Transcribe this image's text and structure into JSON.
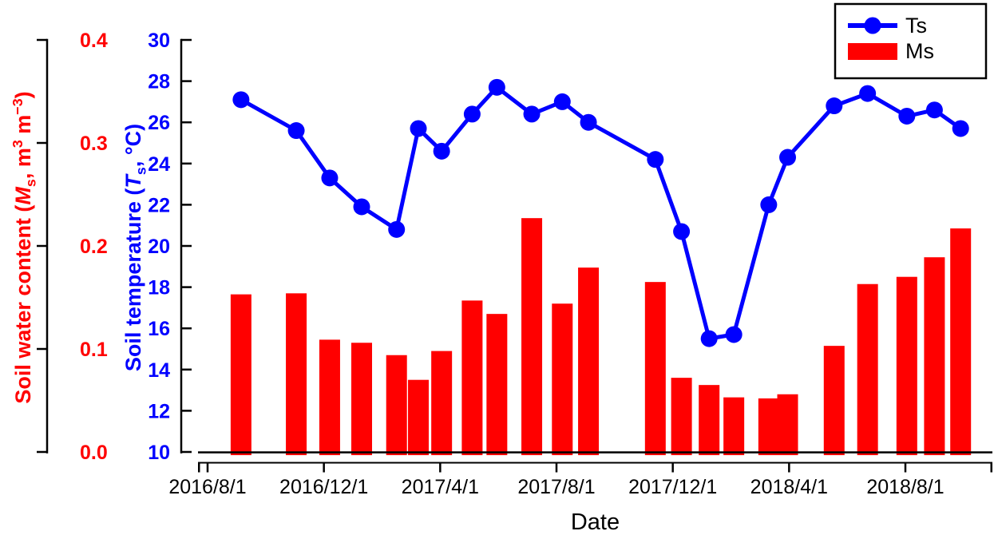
{
  "figure": {
    "water_axis_title_parts": [
      {
        "t": "Soil water content ("
      },
      {
        "t": "M",
        "i": 1
      },
      {
        "t": "s",
        "sub": 1
      },
      {
        "t": ", m"
      },
      {
        "t": "3",
        "sup": 1
      },
      {
        "t": " m"
      },
      {
        "t": "−3",
        "sup": 1
      },
      {
        "t": ")"
      }
    ],
    "temp_axis_title_parts": [
      {
        "t": "Soil temperature ("
      },
      {
        "t": "T",
        "i": 1
      },
      {
        "t": "s",
        "sub": 1
      },
      {
        "t": ", °C)"
      }
    ]
  },
  "chart_data": {
    "type": "dual-axis line+bar",
    "title": "",
    "background": "#ffffff",
    "grid": false,
    "x_axis": {
      "label": "Date",
      "origin_date": "2016/8/1",
      "tick_labels": [
        "2016/8/1",
        "2016/12/1",
        "2017/4/1",
        "2017/8/1",
        "2017/12/1",
        "2018/4/1",
        "2018/8/1"
      ],
      "tick_month_offsets": [
        0,
        4,
        8,
        12,
        16,
        20,
        24
      ],
      "months_span": [
        0,
        27
      ]
    },
    "water_axis": {
      "title": "Soil water content (Ms, m3 m-3)",
      "side": "outer-left",
      "color": "#ff0000",
      "tick_labels": [
        "0.0",
        "0.1",
        "0.2",
        "0.3",
        "0.4"
      ],
      "tick_values": [
        0.0,
        0.1,
        0.2,
        0.3,
        0.4
      ],
      "range": [
        0.0,
        0.4
      ]
    },
    "temperature_axis": {
      "title": "Soil temperature (Ts, °C)",
      "side": "inner-left",
      "color": "#0000ff",
      "tick_labels": [
        "10",
        "12",
        "14",
        "16",
        "18",
        "20",
        "22",
        "24",
        "26",
        "28",
        "30"
      ],
      "tick_values": [
        10,
        12,
        14,
        16,
        18,
        20,
        22,
        24,
        26,
        28,
        30
      ],
      "range": [
        10,
        30
      ]
    },
    "legend": {
      "position": "top-right",
      "entries": [
        {
          "label": "Ts",
          "marker": "line-circle",
          "color": "#0000ff"
        },
        {
          "label": "Ms",
          "marker": "filled-bar",
          "color": "#ff0000"
        }
      ]
    },
    "series": [
      {
        "name": "Ts",
        "type": "line",
        "axis": "temperature",
        "color": "#0000ff",
        "points": [
          {
            "date": "2016/9",
            "x_months": 1.15,
            "y": 27.1
          },
          {
            "date": "2016/11",
            "x_months": 3.05,
            "y": 25.6
          },
          {
            "date": "2016/12",
            "x_months": 4.2,
            "y": 23.3
          },
          {
            "date": "2017/1",
            "x_months": 5.3,
            "y": 21.9
          },
          {
            "date": "2017/2",
            "x_months": 6.5,
            "y": 20.8
          },
          {
            "date": "2017/3",
            "x_months": 7.25,
            "y": 25.7
          },
          {
            "date": "2017/4",
            "x_months": 8.05,
            "y": 24.6
          },
          {
            "date": "2017/5",
            "x_months": 9.1,
            "y": 26.4
          },
          {
            "date": "2017/6",
            "x_months": 9.95,
            "y": 27.7
          },
          {
            "date": "2017/7",
            "x_months": 11.15,
            "y": 26.4
          },
          {
            "date": "2017/8",
            "x_months": 12.2,
            "y": 27.0
          },
          {
            "date": "2017/9",
            "x_months": 13.1,
            "y": 26.0
          },
          {
            "date": "2017/11",
            "x_months": 15.4,
            "y": 24.2
          },
          {
            "date": "2017/12",
            "x_months": 16.3,
            "y": 20.7
          },
          {
            "date": "2018/1",
            "x_months": 17.25,
            "y": 15.5
          },
          {
            "date": "2018/2",
            "x_months": 18.1,
            "y": 15.7
          },
          {
            "date": "2018/3",
            "x_months": 19.3,
            "y": 22.0
          },
          {
            "date": "2018/4",
            "x_months": 19.95,
            "y": 24.3
          },
          {
            "date": "2018/5",
            "x_months": 21.55,
            "y": 26.8
          },
          {
            "date": "2018/6",
            "x_months": 22.7,
            "y": 27.4
          },
          {
            "date": "2018/8",
            "x_months": 24.05,
            "y": 26.3
          },
          {
            "date": "2018/9",
            "x_months": 25.0,
            "y": 26.6
          },
          {
            "date": "2018/10",
            "x_months": 25.9,
            "y": 25.7
          }
        ]
      },
      {
        "name": "Ms",
        "type": "bar",
        "axis": "water",
        "color": "#ff0000",
        "points": [
          {
            "date": "2016/9",
            "x_months": 1.15,
            "y": 0.153
          },
          {
            "date": "2016/11",
            "x_months": 3.05,
            "y": 0.154
          },
          {
            "date": "2016/12",
            "x_months": 4.2,
            "y": 0.109
          },
          {
            "date": "2017/1",
            "x_months": 5.3,
            "y": 0.106
          },
          {
            "date": "2017/2",
            "x_months": 6.5,
            "y": 0.094
          },
          {
            "date": "2017/3",
            "x_months": 7.25,
            "y": 0.07
          },
          {
            "date": "2017/4",
            "x_months": 8.05,
            "y": 0.098
          },
          {
            "date": "2017/5",
            "x_months": 9.1,
            "y": 0.147
          },
          {
            "date": "2017/6",
            "x_months": 9.95,
            "y": 0.134
          },
          {
            "date": "2017/7",
            "x_months": 11.15,
            "y": 0.227
          },
          {
            "date": "2017/8",
            "x_months": 12.2,
            "y": 0.144
          },
          {
            "date": "2017/9",
            "x_months": 13.1,
            "y": 0.179
          },
          {
            "date": "2017/11",
            "x_months": 15.4,
            "y": 0.165
          },
          {
            "date": "2017/12",
            "x_months": 16.3,
            "y": 0.072
          },
          {
            "date": "2018/1",
            "x_months": 17.25,
            "y": 0.065
          },
          {
            "date": "2018/2",
            "x_months": 18.1,
            "y": 0.053
          },
          {
            "date": "2018/3",
            "x_months": 19.3,
            "y": 0.052
          },
          {
            "date": "2018/4",
            "x_months": 19.95,
            "y": 0.056
          },
          {
            "date": "2018/5",
            "x_months": 21.55,
            "y": 0.103
          },
          {
            "date": "2018/6",
            "x_months": 22.7,
            "y": 0.163
          },
          {
            "date": "2018/8",
            "x_months": 24.05,
            "y": 0.17
          },
          {
            "date": "2018/9",
            "x_months": 25.0,
            "y": 0.189
          },
          {
            "date": "2018/10",
            "x_months": 25.9,
            "y": 0.217
          }
        ]
      }
    ]
  }
}
